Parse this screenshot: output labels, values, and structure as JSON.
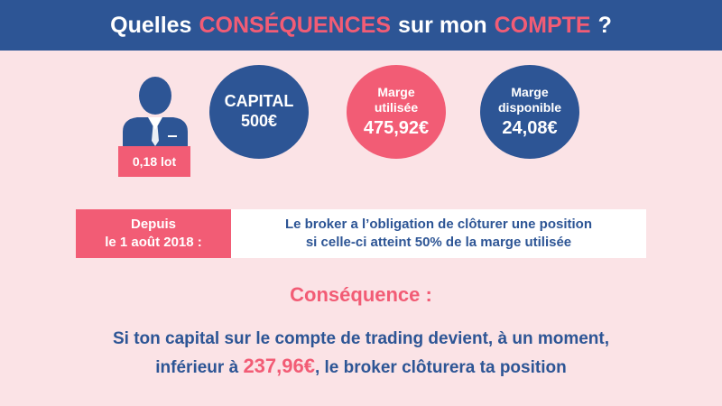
{
  "header": {
    "part1": "Quelles",
    "part2": "CONSÉQUENCES",
    "part3": "sur mon",
    "part4": "COMPTE",
    "part5": "?"
  },
  "position": {
    "lot": "0,18 lot",
    "icon": "businessman-icon"
  },
  "circles": {
    "capital": {
      "label": "CAPITAL",
      "value": "500€"
    },
    "used": {
      "label": "Marge utilisée",
      "value": "475,92€"
    },
    "free": {
      "label": "Marge disponible",
      "value": "24,08€"
    }
  },
  "rule": {
    "date_line1": "Depuis",
    "date_line2": "le 1 août 2018 :",
    "text_line1": "Le broker a l’obligation de clôturer une position",
    "text_line2": "si celle-ci atteint 50% de la marge utilisée"
  },
  "consequence": {
    "title": "Conséquence :",
    "line1": "Si ton capital sur le compte de trading devient, à un moment,",
    "line2_before": "inférieur à",
    "line2_amount": "237,96€",
    "line2_after": ", le broker clôturera ta position"
  },
  "colors": {
    "blue": "#2d5595",
    "pink": "#f25c75",
    "background": "#fbe3e6"
  }
}
